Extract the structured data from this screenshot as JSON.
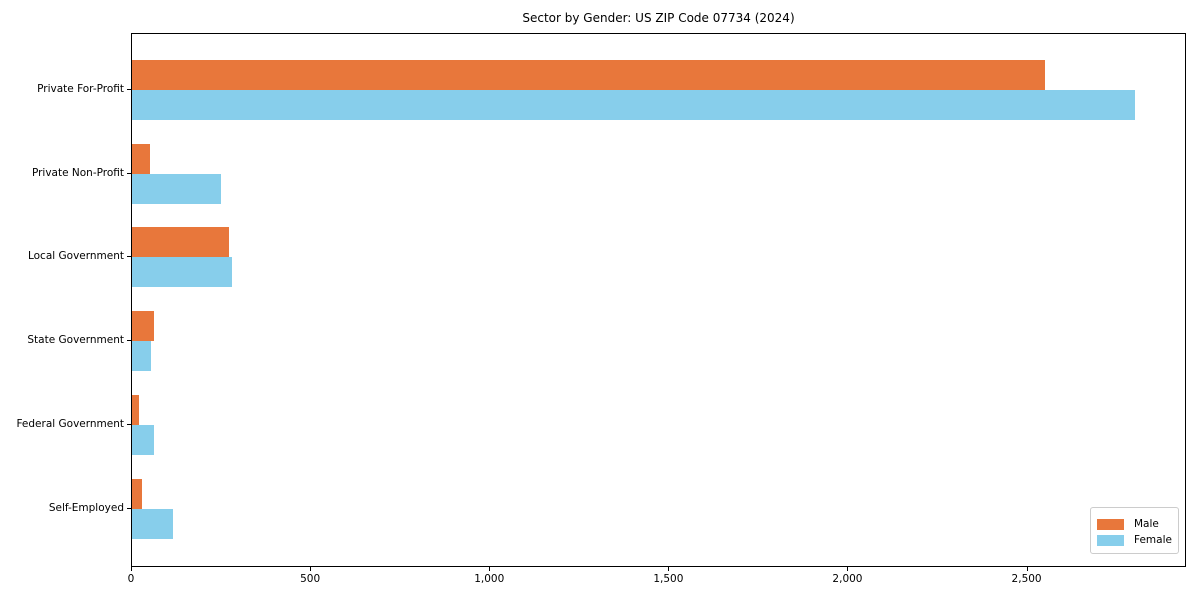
{
  "title": "Sector by Gender: US ZIP Code 07734 (2024)",
  "colors": {
    "male": "#E8773B",
    "female": "#87CEEB",
    "axis": "#000000",
    "legend_border": "#CCCCCC",
    "background": "#FFFFFF"
  },
  "legend": {
    "position": "lower right",
    "items": [
      {
        "label": "Male"
      },
      {
        "label": "Female"
      }
    ]
  },
  "chart_data": {
    "type": "bar",
    "orientation": "horizontal",
    "title": "Sector by Gender: US ZIP Code 07734 (2024)",
    "categories": [
      "Private For-Profit",
      "Private Non-Profit",
      "Local Government",
      "State Government",
      "Federal Government",
      "Self-Employed"
    ],
    "series": [
      {
        "name": "Male",
        "color": "#E8773B",
        "values": [
          2554,
          50,
          270,
          62,
          20,
          27
        ]
      },
      {
        "name": "Female",
        "color": "#87CEEB",
        "values": [
          2805,
          250,
          279,
          53,
          62,
          115
        ]
      }
    ],
    "xlabel": "",
    "ylabel": "",
    "xlim": [
      0,
      2945
    ],
    "x_ticks": [
      0,
      500,
      1000,
      1500,
      2000,
      2500
    ],
    "x_tick_labels": [
      "0",
      "500",
      "1,000",
      "1,500",
      "2,000",
      "2,500"
    ],
    "grid": false,
    "legend_position": "lower right"
  }
}
